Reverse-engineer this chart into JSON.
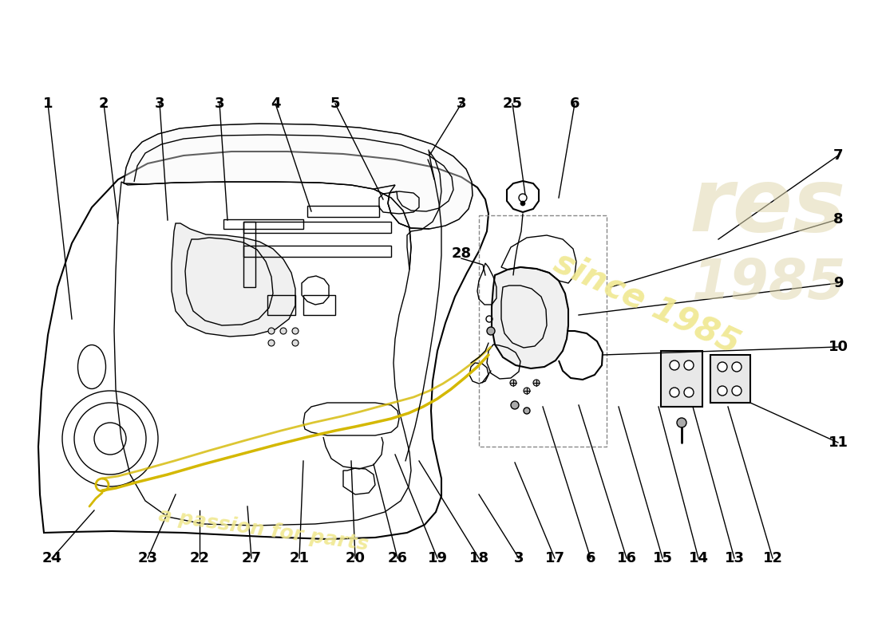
{
  "bg_color": "#ffffff",
  "line_color": "#000000",
  "cable_color": "#d4b800",
  "watermark_text1": "since 1985",
  "watermark_text2": "a passion for parts",
  "wm_color1": "#f0e890",
  "wm_color2": "#f0e890",
  "wm_logo_color": "#e8e0c0",
  "top_labels": [
    [
      "1",
      60,
      130
    ],
    [
      "2",
      130,
      130
    ],
    [
      "3",
      200,
      130
    ],
    [
      "3",
      275,
      130
    ],
    [
      "4",
      345,
      130
    ],
    [
      "5",
      420,
      130
    ],
    [
      "3",
      578,
      130
    ],
    [
      "25",
      642,
      130
    ],
    [
      "6",
      720,
      130
    ],
    [
      "7",
      1050,
      195
    ],
    [
      "8",
      1050,
      275
    ],
    [
      "9",
      1050,
      355
    ],
    [
      "10",
      1050,
      435
    ],
    [
      "11",
      1050,
      555
    ]
  ],
  "bot_labels": [
    [
      "24",
      65,
      700
    ],
    [
      "23",
      185,
      700
    ],
    [
      "22",
      250,
      700
    ],
    [
      "27",
      315,
      700
    ],
    [
      "21",
      375,
      700
    ],
    [
      "20",
      445,
      700
    ],
    [
      "26",
      498,
      700
    ],
    [
      "19",
      548,
      700
    ],
    [
      "18",
      600,
      700
    ],
    [
      "3",
      650,
      700
    ],
    [
      "17",
      695,
      700
    ],
    [
      "6",
      740,
      700
    ],
    [
      "16",
      785,
      700
    ],
    [
      "15",
      830,
      700
    ],
    [
      "14",
      875,
      700
    ],
    [
      "13",
      920,
      700
    ],
    [
      "12",
      968,
      700
    ]
  ]
}
